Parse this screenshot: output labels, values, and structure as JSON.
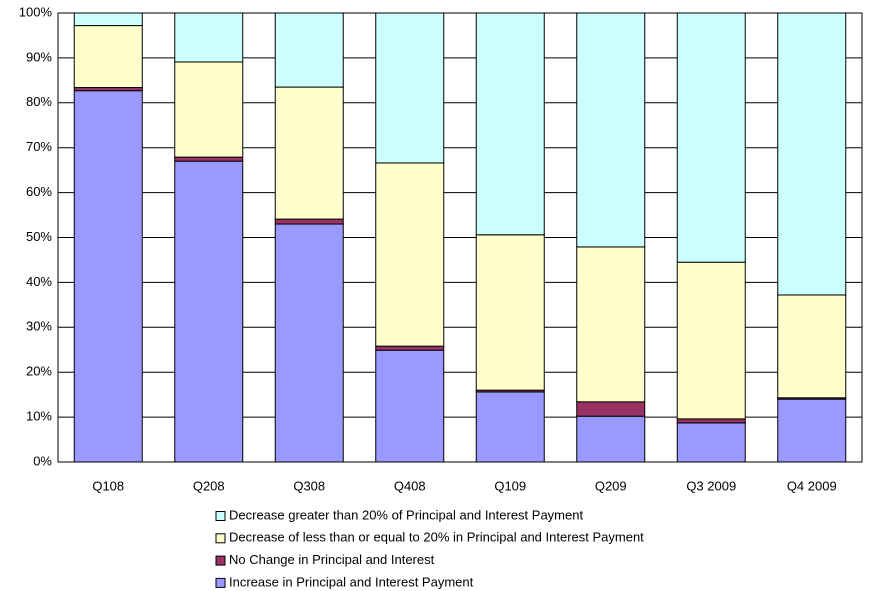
{
  "chart_data": {
    "type": "stacked-bar",
    "categories": [
      "Q108",
      "Q208",
      "Q308",
      "Q408",
      "Q109",
      "Q209",
      "Q3 2009",
      "Q4 2009"
    ],
    "series": [
      {
        "name": "Increase in Principal and Interest Payment",
        "color": "#9999ff",
        "values": [
          82.7,
          67.0,
          53.0,
          24.9,
          15.6,
          10.2,
          8.7,
          14.0
        ]
      },
      {
        "name": "No Change in Principal and Interest",
        "color": "#993366",
        "values": [
          0.7,
          0.9,
          1.1,
          0.9,
          0.4,
          3.2,
          0.9,
          0.3
        ]
      },
      {
        "name": "Decrease of less than or equal to 20% in Principal and Interest Payment",
        "color": "#ffffcc",
        "values": [
          13.8,
          21.2,
          29.4,
          40.8,
          34.6,
          34.5,
          34.9,
          22.9
        ]
      },
      {
        "name": "Decrease greater than 20% of Principal and Interest Payment",
        "color": "#ccffff",
        "values": [
          2.8,
          10.9,
          16.5,
          33.4,
          49.4,
          52.1,
          55.5,
          62.8
        ]
      }
    ],
    "ylim": [
      0,
      100
    ],
    "yticks": [
      {
        "value": 0,
        "label": "0%"
      },
      {
        "value": 10,
        "label": "10%"
      },
      {
        "value": 20,
        "label": "20%"
      },
      {
        "value": 30,
        "label": "30%"
      },
      {
        "value": 40,
        "label": "40%"
      },
      {
        "value": 50,
        "label": "50%"
      },
      {
        "value": 60,
        "label": "60%"
      },
      {
        "value": 70,
        "label": "70%"
      },
      {
        "value": 80,
        "label": "80%"
      },
      {
        "value": 90,
        "label": "90%"
      },
      {
        "value": 100,
        "label": "100%"
      }
    ],
    "grid": true,
    "legend": "bottom"
  }
}
